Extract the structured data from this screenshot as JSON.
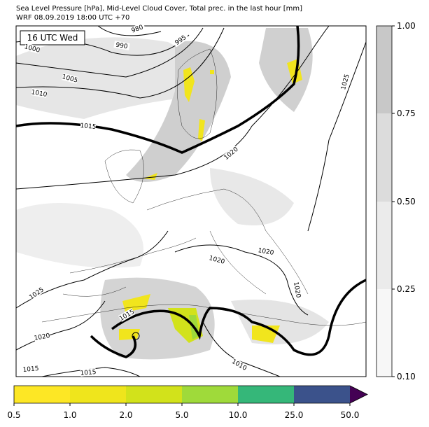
{
  "header": {
    "title": "Sea Level Pressure [hPa], Mid-Level Cloud Cover, Total prec. in the last hour [mm]",
    "subtitle": "WRF 08.09.2019 18:00 UTC +70"
  },
  "map": {
    "time_label": "16 UTC Wed",
    "isobar_labels": [
      "980",
      "990",
      "995",
      "1000",
      "1005",
      "1010",
      "1015",
      "1020",
      "1025",
      "1020",
      "1020",
      "1025",
      "1020",
      "1015",
      "1010",
      "1015",
      "1015",
      "1020"
    ]
  },
  "cloud_colorbar": {
    "ticks": [
      "1.00",
      "0.75",
      "0.50",
      "0.25",
      "0.10"
    ]
  },
  "precip_colorbar": {
    "ticks": [
      "0.5",
      "1.0",
      "2.0",
      "5.0",
      "10.0",
      "25.0",
      "50.0"
    ]
  }
}
